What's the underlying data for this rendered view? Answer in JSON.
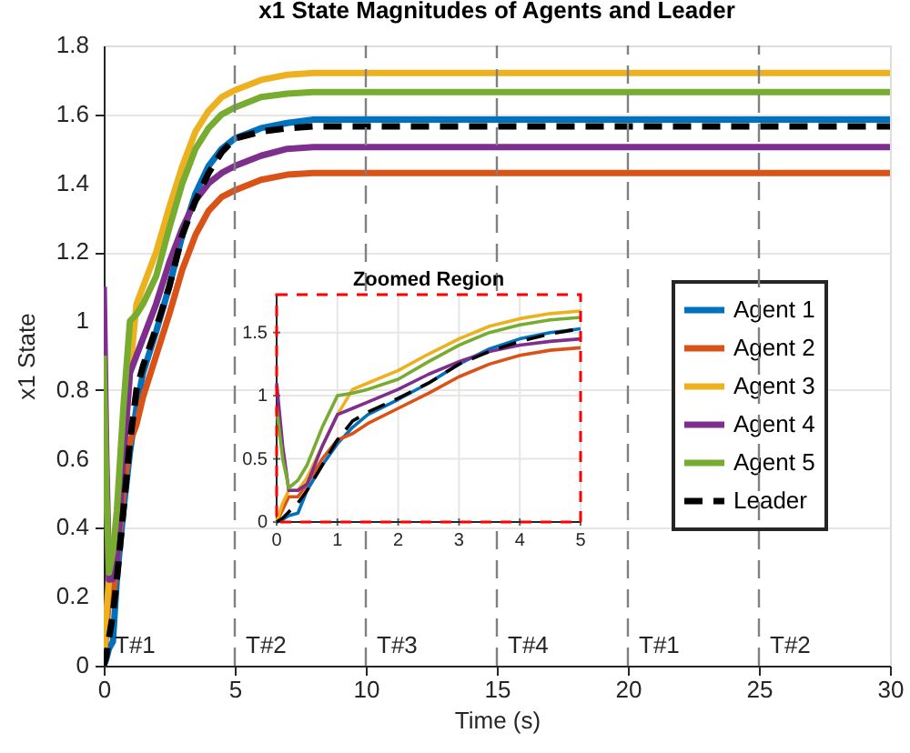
{
  "chart_data": [
    {
      "type": "line",
      "title": "x1 State Magnitudes of Agents and Leader",
      "xlabel": "Time (s)",
      "ylabel": "x1 State",
      "x": [
        0,
        0.1,
        0.2,
        0.35,
        0.5,
        0.75,
        1,
        1.25,
        1.5,
        2,
        2.5,
        3,
        3.5,
        4,
        4.5,
        5,
        6,
        7,
        8,
        10,
        30
      ],
      "series": [
        {
          "name": "Agent 1",
          "color": "#0072bd",
          "values": [
            0,
            0.02,
            0.05,
            0.07,
            0.25,
            0.45,
            0.62,
            0.75,
            0.85,
            0.97,
            1.1,
            1.25,
            1.37,
            1.45,
            1.5,
            1.53,
            1.56,
            1.575,
            1.585,
            1.585,
            1.585
          ]
        },
        {
          "name": "Agent 2",
          "color": "#d95319",
          "values": [
            0,
            0.1,
            0.2,
            0.2,
            0.3,
            0.5,
            0.65,
            0.7,
            0.78,
            0.9,
            1.02,
            1.15,
            1.25,
            1.32,
            1.36,
            1.38,
            1.41,
            1.425,
            1.43,
            1.43,
            1.43
          ]
        },
        {
          "name": "Agent 3",
          "color": "#edb120",
          "values": [
            0,
            0.15,
            0.25,
            0.25,
            0.35,
            0.6,
            0.85,
            1.05,
            1.1,
            1.2,
            1.33,
            1.45,
            1.55,
            1.61,
            1.65,
            1.67,
            1.7,
            1.715,
            1.72,
            1.72,
            1.72
          ]
        },
        {
          "name": "Agent 4",
          "color": "#7e2f8e",
          "values": [
            1.1,
            0.6,
            0.25,
            0.25,
            0.3,
            0.6,
            0.85,
            0.9,
            0.95,
            1.05,
            1.17,
            1.27,
            1.35,
            1.4,
            1.43,
            1.45,
            1.48,
            1.5,
            1.505,
            1.505,
            1.505
          ]
        },
        {
          "name": "Agent 5",
          "color": "#77ac30",
          "values": [
            0.9,
            0.5,
            0.27,
            0.33,
            0.45,
            0.75,
            1.0,
            1.02,
            1.05,
            1.13,
            1.27,
            1.4,
            1.5,
            1.56,
            1.6,
            1.62,
            1.65,
            1.66,
            1.665,
            1.665,
            1.665
          ]
        },
        {
          "name": "Leader",
          "color": "#000000",
          "line_style": "dashed",
          "values": [
            0,
            0.03,
            0.08,
            0.15,
            0.25,
            0.45,
            0.65,
            0.8,
            0.87,
            0.98,
            1.1,
            1.25,
            1.35,
            1.43,
            1.49,
            1.53,
            1.55,
            1.56,
            1.565,
            1.565,
            1.565
          ]
        }
      ],
      "xlim": [
        0,
        30
      ],
      "xticks": [
        0,
        5,
        10,
        15,
        20,
        25,
        30
      ],
      "ylim": [
        0,
        1.8
      ],
      "yticks": [
        0,
        0.2,
        0.4,
        0.6,
        0.8,
        1,
        1.2,
        1.4,
        1.6,
        1.8
      ],
      "ref_lines": [
        {
          "axis": "x",
          "value": 5,
          "label": "T#2",
          "color": "#808080",
          "line_style": "dashed"
        },
        {
          "axis": "x",
          "value": 10,
          "label": "T#3",
          "color": "#808080",
          "line_style": "dashed"
        },
        {
          "axis": "x",
          "value": 15,
          "label": "T#4",
          "color": "#808080",
          "line_style": "dashed"
        },
        {
          "axis": "x",
          "value": 20,
          "label": "T#1",
          "color": "#808080",
          "line_style": "dashed"
        },
        {
          "axis": "x",
          "value": 25,
          "label": "T#2",
          "color": "#808080",
          "line_style": "dashed"
        }
      ],
      "annotations": [
        {
          "text": "T#1",
          "x": 0,
          "y": 0
        }
      ],
      "grid": "y",
      "legend": "right"
    },
    {
      "type": "line",
      "title": "Zoomed Region",
      "x": [
        0,
        0.1,
        0.2,
        0.35,
        0.5,
        0.75,
        1,
        1.25,
        1.5,
        2,
        2.5,
        3,
        3.5,
        4,
        4.5,
        5
      ],
      "series": [
        {
          "color": "#0072bd",
          "values": [
            0,
            0.02,
            0.05,
            0.07,
            0.25,
            0.45,
            0.62,
            0.75,
            0.85,
            0.97,
            1.1,
            1.25,
            1.37,
            1.45,
            1.5,
            1.53
          ]
        },
        {
          "color": "#d95319",
          "values": [
            0,
            0.1,
            0.2,
            0.2,
            0.3,
            0.5,
            0.65,
            0.7,
            0.78,
            0.9,
            1.02,
            1.15,
            1.25,
            1.32,
            1.36,
            1.38
          ]
        },
        {
          "color": "#edb120",
          "values": [
            0,
            0.15,
            0.25,
            0.25,
            0.35,
            0.6,
            0.85,
            1.05,
            1.1,
            1.2,
            1.33,
            1.45,
            1.55,
            1.61,
            1.65,
            1.67
          ]
        },
        {
          "color": "#7e2f8e",
          "values": [
            1.1,
            0.6,
            0.25,
            0.25,
            0.3,
            0.6,
            0.85,
            0.9,
            0.95,
            1.05,
            1.17,
            1.27,
            1.35,
            1.4,
            1.43,
            1.45
          ]
        },
        {
          "color": "#77ac30",
          "values": [
            0.9,
            0.5,
            0.27,
            0.33,
            0.45,
            0.75,
            1.0,
            1.02,
            1.05,
            1.13,
            1.27,
            1.4,
            1.5,
            1.56,
            1.6,
            1.62
          ]
        },
        {
          "color": "#000000",
          "line_style": "dashed",
          "values": [
            0,
            0.03,
            0.08,
            0.15,
            0.25,
            0.45,
            0.65,
            0.8,
            0.87,
            0.98,
            1.1,
            1.25,
            1.35,
            1.43,
            1.49,
            1.53
          ]
        }
      ],
      "xlim": [
        0,
        5
      ],
      "xticks": [
        0,
        1,
        2,
        3,
        4,
        5
      ],
      "ylim": [
        0,
        1.8
      ],
      "yticks": [
        0,
        0.5,
        1,
        1.5
      ],
      "grid": true
    }
  ]
}
